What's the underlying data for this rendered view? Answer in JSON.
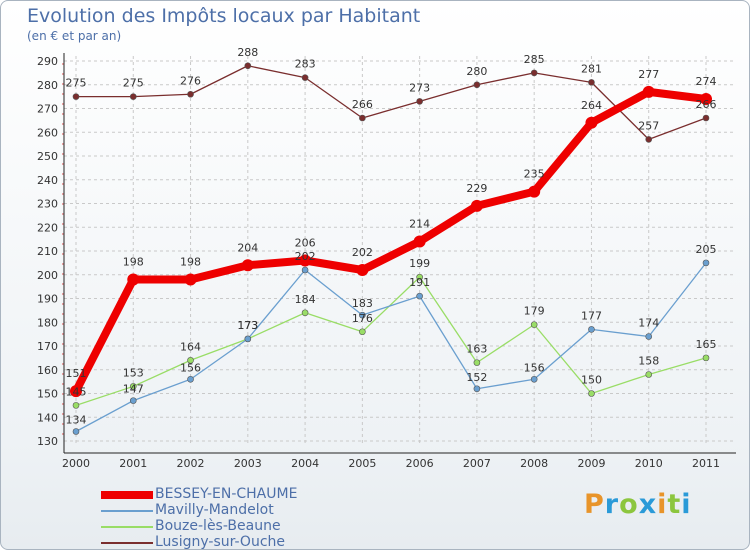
{
  "title": "Evolution des Impôts locaux par Habitant",
  "subtitle": "(en € et par an)",
  "brand": {
    "letters": [
      "P",
      "r",
      "o",
      "x",
      "i",
      "t",
      "i"
    ],
    "colors": [
      "#e8942a",
      "#2a9ad8",
      "#8cc63e",
      "#2a9ad8",
      "#e8942a",
      "#8cc63e",
      "#2a9ad8"
    ]
  },
  "chart_data": {
    "type": "line",
    "title": "Evolution des Impôts locaux par Habitant",
    "ylabel": "(en € et par an)",
    "xlabel": "",
    "x": [
      "2000",
      "2001",
      "2002",
      "2003",
      "2004",
      "2005",
      "2006",
      "2007",
      "2008",
      "2009",
      "2010",
      "2011"
    ],
    "ylim": [
      130,
      290
    ],
    "yticks": [
      130,
      140,
      150,
      160,
      170,
      180,
      190,
      200,
      210,
      220,
      230,
      240,
      250,
      260,
      270,
      280,
      290
    ],
    "grid": true,
    "legend_position": "bottom-left",
    "series": [
      {
        "name": "BESSEY-EN-CHAUME",
        "color": "#ee0000",
        "values": [
          151,
          198,
          198,
          204,
          206,
          202,
          214,
          229,
          235,
          264,
          277,
          274
        ]
      },
      {
        "name": "Mavilly-Mandelot",
        "color": "#6a9fcf",
        "values": [
          134,
          147,
          156,
          173,
          202,
          183,
          191,
          152,
          156,
          177,
          174,
          205
        ]
      },
      {
        "name": "Bouze-lès-Beaune",
        "color": "#99dd66",
        "values": [
          145,
          153,
          164,
          173,
          184,
          176,
          199,
          163,
          179,
          150,
          158,
          165
        ]
      },
      {
        "name": "Lusigny-sur-Ouche",
        "color": "#7a2e2e",
        "values": [
          275,
          275,
          276,
          288,
          283,
          266,
          273,
          280,
          285,
          281,
          257,
          266
        ]
      }
    ]
  }
}
